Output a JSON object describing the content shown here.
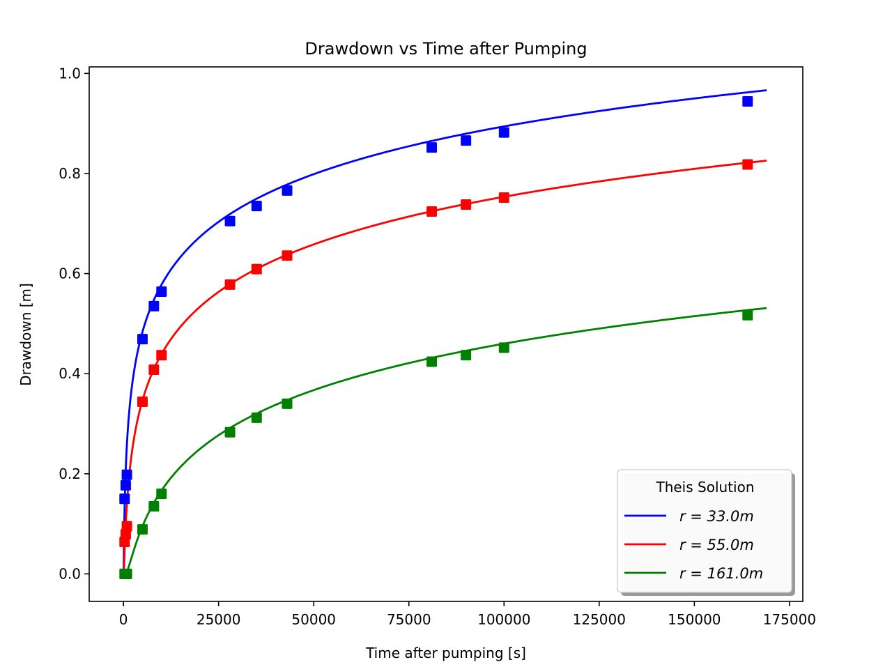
{
  "chart_data": {
    "type": "line",
    "title": "Drawdown vs Time after Pumping",
    "xlabel": "Time after pumping [s]",
    "ylabel": "Drawdown [m]",
    "xlim": [
      -9000,
      178500
    ],
    "ylim": [
      -0.055,
      1.013
    ],
    "xticks": [
      0,
      25000,
      50000,
      75000,
      100000,
      125000,
      150000,
      175000
    ],
    "xtick_labels": [
      "0",
      "25000",
      "50000",
      "75000",
      "100000",
      "125000",
      "150000",
      "175000"
    ],
    "yticks": [
      0.0,
      0.2,
      0.4,
      0.6,
      0.8,
      1.0
    ],
    "ytick_labels": [
      "0.0",
      "0.2",
      "0.4",
      "0.6",
      "0.8",
      "1.0"
    ],
    "grid": false,
    "legend": {
      "title": "Theis Solution",
      "placement": "lower-right",
      "entries": [
        "r = 33.0m",
        "r = 55.0m",
        "r = 161.0m"
      ]
    },
    "model": {
      "q_over_4piT": 0.1378,
      "s_over_4T": 0.0785,
      "t_max": 169000
    },
    "observation_times": [
      300,
      600,
      900,
      5000,
      8000,
      10000,
      28000,
      35000,
      43000,
      81000,
      90000,
      100000,
      164000
    ],
    "series": [
      {
        "name": "r = 33.0m",
        "r": 33.0,
        "color": "#0000ff",
        "observed": [
          0.15,
          0.177,
          0.198,
          0.469,
          0.535,
          0.564,
          0.705,
          0.735,
          0.766,
          0.852,
          0.866,
          0.882,
          0.944
        ]
      },
      {
        "name": "r = 55.0m",
        "r": 55.0,
        "color": "#ff0000",
        "observed": [
          0.064,
          0.079,
          0.095,
          0.344,
          0.408,
          0.437,
          0.578,
          0.609,
          0.636,
          0.724,
          0.738,
          0.752,
          0.818
        ]
      },
      {
        "name": "r = 161.0m",
        "r": 161.0,
        "color": "#008000",
        "observed": [
          0.0,
          0.0,
          0.0,
          0.089,
          0.135,
          0.16,
          0.283,
          0.312,
          0.34,
          0.424,
          0.437,
          0.452,
          0.517
        ]
      }
    ]
  }
}
